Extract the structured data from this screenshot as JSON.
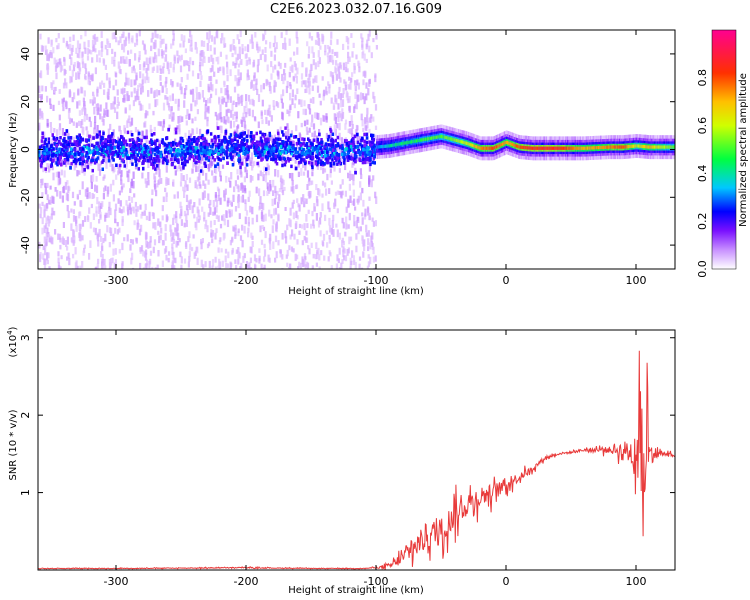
{
  "title": "C2E6.2023.032.07.16.G09",
  "colors": {
    "snr_line": "#e83a3a",
    "frame": "#000000",
    "colormap": [
      "#ffffff",
      "#b060ff",
      "#4a00ff",
      "#0000ff",
      "#00c8ff",
      "#00ff00",
      "#ffff00",
      "#ff8000",
      "#ff0000",
      "#ff00a0"
    ]
  },
  "chart_data": [
    {
      "type": "heatmap",
      "xlabel": "Height of straight line (km)",
      "ylabel": "Frequency (Hz)",
      "xlim": [
        -360,
        130
      ],
      "ylim": [
        -50,
        50
      ],
      "xticks": [
        -300,
        -200,
        -100,
        0,
        100
      ],
      "yticks": [
        -40,
        -20,
        0,
        20,
        40
      ],
      "colorbar": {
        "label": "Normalized spectral amplitude",
        "range": [
          0.0,
          1.0
        ],
        "ticks": [
          "0.0",
          "0.2",
          "0.4",
          "0.6",
          "0.8"
        ]
      },
      "ridge": {
        "x": [
          -360,
          -300,
          -250,
          -200,
          -150,
          -100,
          -90,
          -80,
          -70,
          -60,
          -50,
          -40,
          -30,
          -20,
          -10,
          0,
          10,
          20,
          40,
          60,
          80,
          90,
          100,
          110,
          130
        ],
        "frequency": [
          0,
          1,
          0,
          2,
          0,
          1,
          1.5,
          2.5,
          3.5,
          4.5,
          5.5,
          4,
          2.5,
          0.5,
          0.5,
          3,
          1,
          0.5,
          0.5,
          0.5,
          1,
          1,
          1.5,
          1,
          1
        ],
        "amplitude": [
          0.22,
          0.22,
          0.22,
          0.25,
          0.22,
          0.3,
          0.4,
          0.45,
          0.45,
          0.5,
          0.5,
          0.55,
          0.6,
          0.75,
          0.8,
          0.7,
          0.8,
          0.85,
          0.85,
          0.7,
          0.75,
          0.8,
          0.6,
          0.7,
          0.5
        ]
      },
      "noise_region": {
        "xlim": [
          -360,
          -100
        ],
        "spread_hz": 50
      }
    },
    {
      "type": "line",
      "xlabel": "Height of straight line (km)",
      "ylabel": "SNR (10 * v/v)",
      "yscale_note": "(x10",
      "yscale_exponent": "4",
      "y_multiplier": 10000,
      "xlim": [
        -360,
        130
      ],
      "ylim": [
        0,
        3.1
      ],
      "xticks": [
        -300,
        -200,
        -100,
        0,
        100
      ],
      "yticks": [
        1,
        2,
        3
      ],
      "series": [
        {
          "x": [
            -360,
            -300,
            -200,
            -150,
            -110,
            -100,
            -90,
            -80,
            -70,
            -60,
            -50,
            -40,
            -30,
            -20,
            -10,
            0,
            10,
            20,
            30,
            40,
            50,
            60,
            70,
            80,
            90,
            100,
            105,
            110,
            120,
            130
          ],
          "y": [
            0.02,
            0.02,
            0.03,
            0.02,
            0.02,
            0.03,
            0.05,
            0.15,
            0.3,
            0.45,
            0.5,
            0.7,
            0.85,
            0.95,
            1.0,
            1.1,
            1.2,
            1.3,
            1.45,
            1.5,
            1.52,
            1.55,
            1.55,
            1.55,
            1.55,
            1.5,
            1.2,
            1.5,
            1.5,
            1.48
          ],
          "noise": [
            0.005,
            0.005,
            0.008,
            0.005,
            0.005,
            0.01,
            0.05,
            0.12,
            0.2,
            0.25,
            0.25,
            0.25,
            0.2,
            0.2,
            0.15,
            0.12,
            0.08,
            0.05,
            0.03,
            0.02,
            0.02,
            0.03,
            0.05,
            0.06,
            0.15,
            0.35,
            0.8,
            0.2,
            0.04,
            0.03
          ]
        }
      ]
    }
  ]
}
